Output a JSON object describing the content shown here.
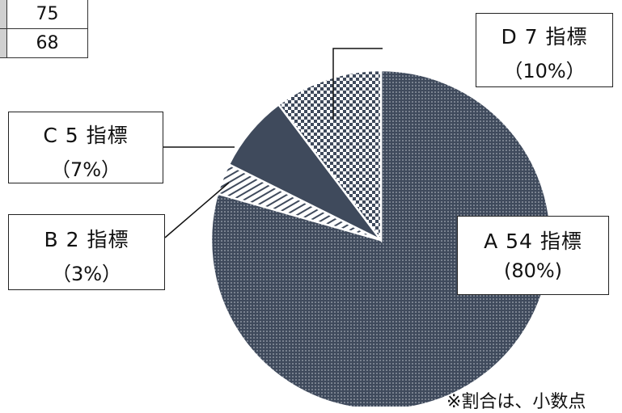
{
  "colors": {
    "slice_fill": "#3f4a5c",
    "pattern_light": "#ffffff"
  },
  "table_fragment": {
    "cells": [
      "75",
      "68"
    ]
  },
  "chart_data": {
    "type": "pie",
    "title": "",
    "categories": [
      "A",
      "B",
      "C",
      "D"
    ],
    "values": [
      54,
      2,
      5,
      7
    ],
    "unit": "指標",
    "percentages": [
      "80%",
      "3%",
      "7%",
      "10%"
    ],
    "start": "12 o'clock, clockwise",
    "slices": [
      {
        "name": "A",
        "count_label": "54 指標",
        "pct_label": "(80%)",
        "pattern": "dots"
      },
      {
        "name": "B",
        "count_label": "2 指標",
        "pct_label": "（3%）",
        "pattern": "diagonal-stripes"
      },
      {
        "name": "C",
        "count_label": "5 指標",
        "pct_label": "（7%）",
        "pattern": "solid"
      },
      {
        "name": "D",
        "count_label": "7 指標",
        "pct_label": "（10%）",
        "pattern": "checkerboard"
      }
    ]
  },
  "note": "※割合は、小数点"
}
